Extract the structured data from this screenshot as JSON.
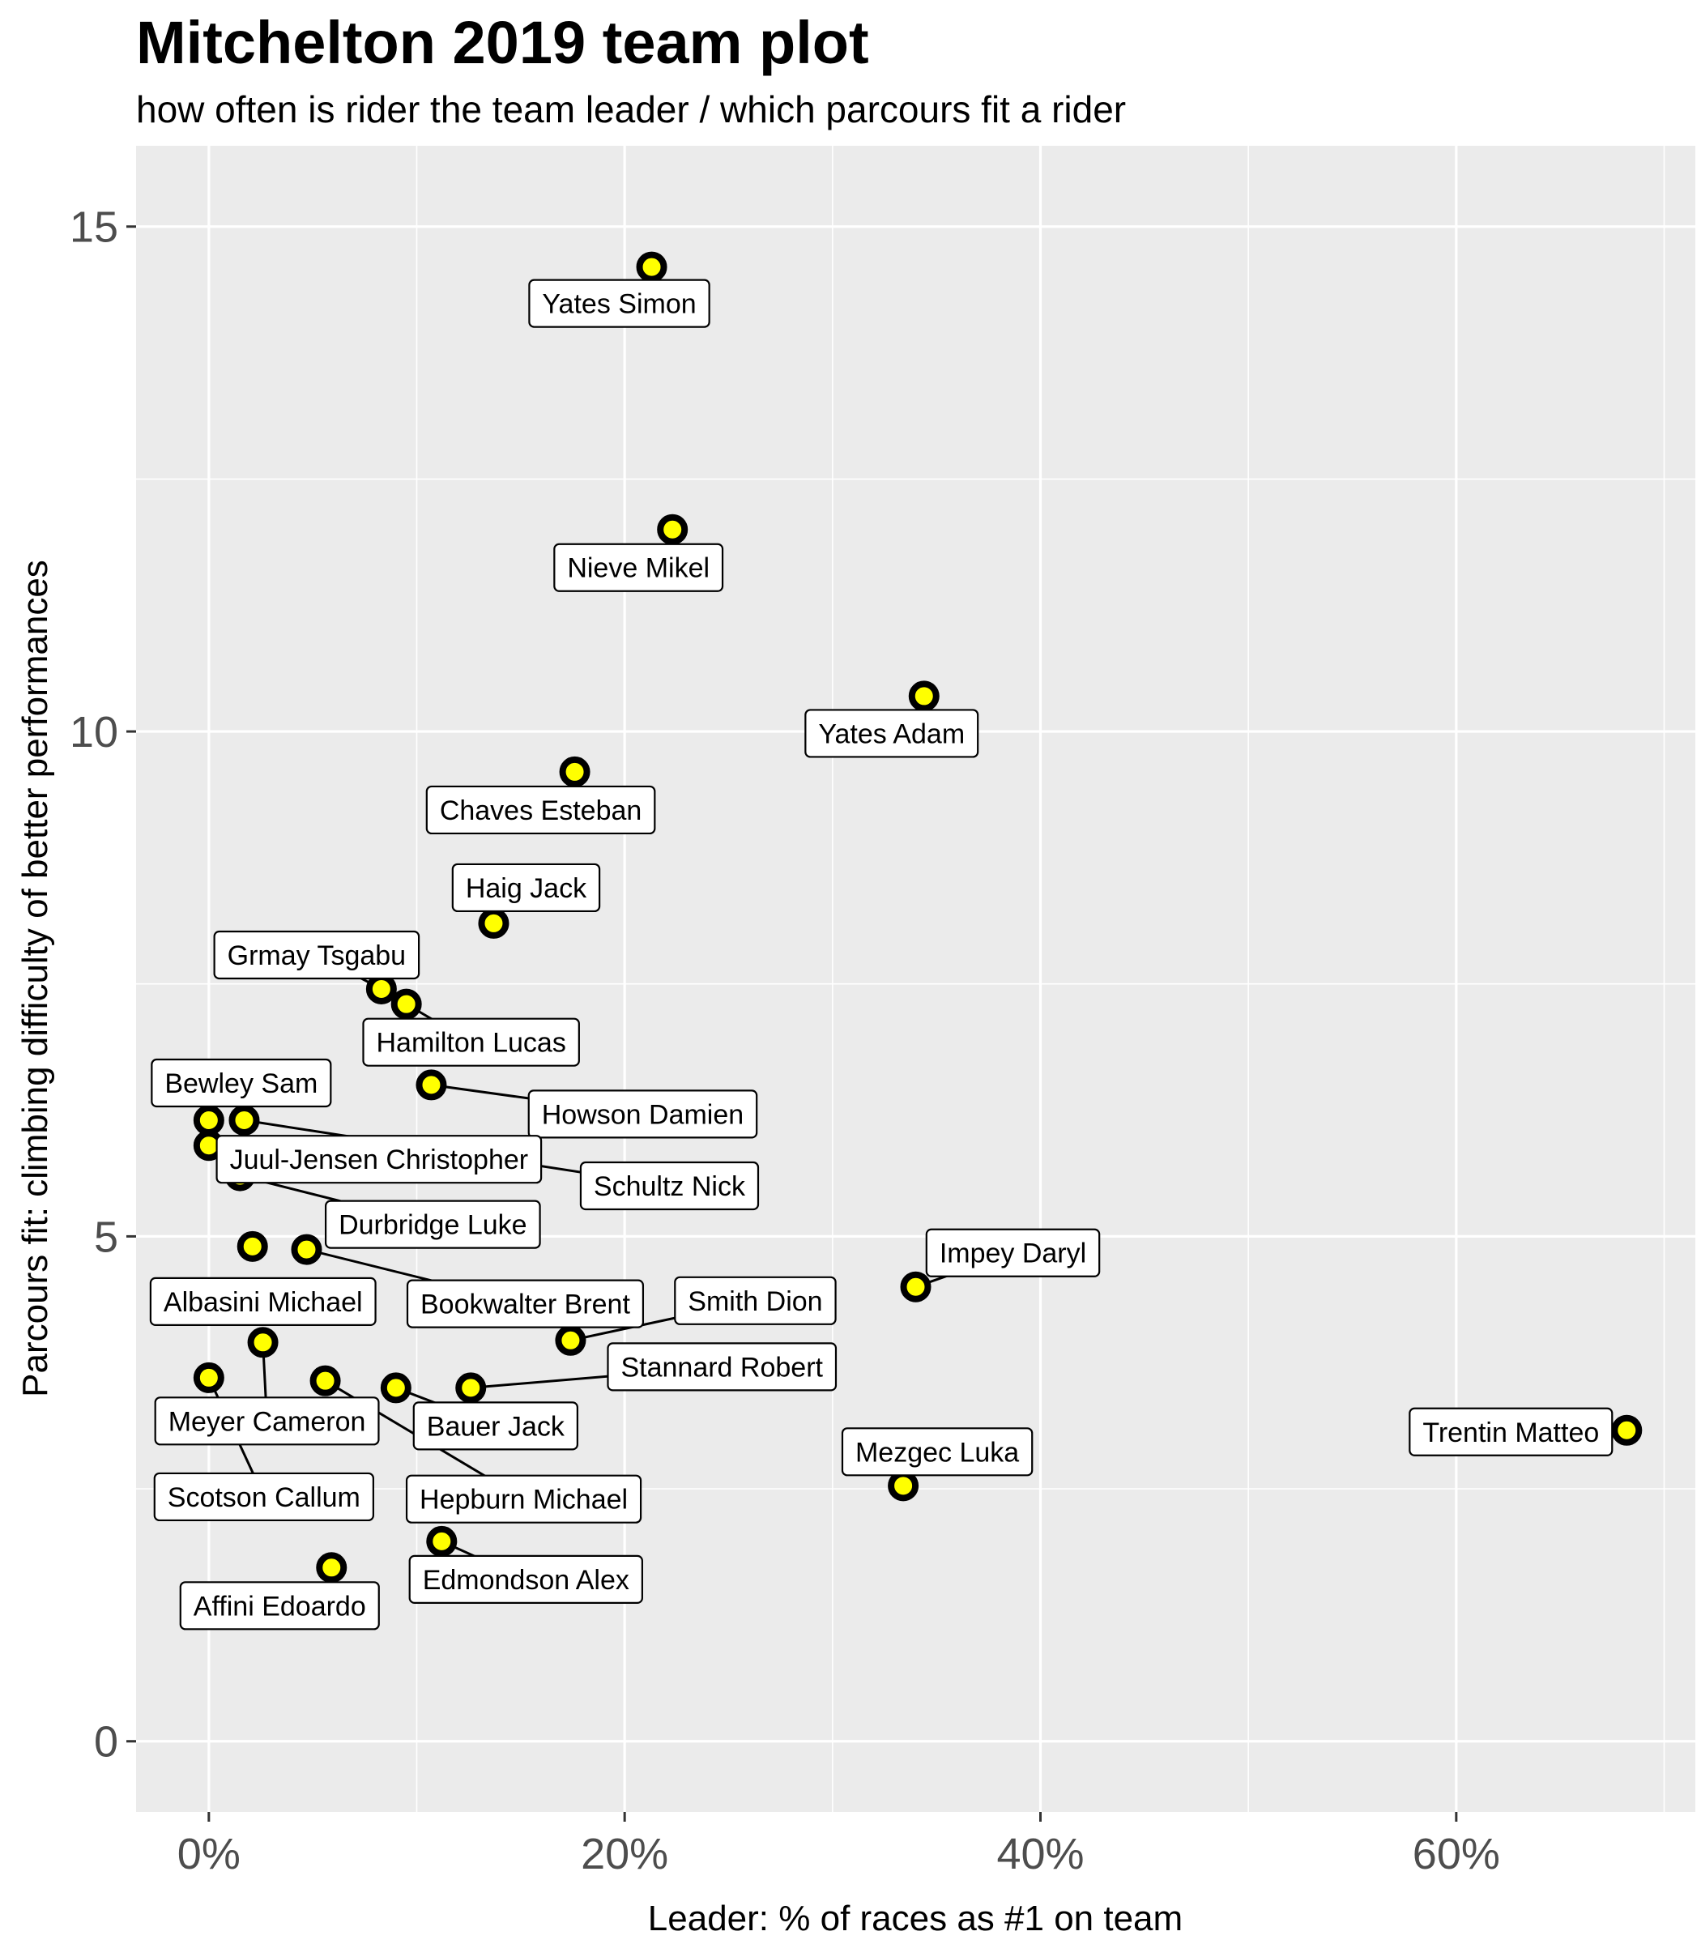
{
  "chart_data": {
    "type": "scatter",
    "title": "Mitchelton 2019 team plot",
    "subtitle": "how often is rider the team leader / which parcours fit a rider",
    "xlabel": "Leader: % of races as #1 on team",
    "ylabel": "Parcours fit: climbing difficulty of better performances",
    "xlim": [
      -3.5,
      71.5
    ],
    "ylim": [
      -0.7,
      15.8
    ],
    "x_ticks": [
      0,
      20,
      40,
      60
    ],
    "x_tick_labels": [
      "0%",
      "20%",
      "40%",
      "60%"
    ],
    "y_ticks": [
      0,
      5,
      10,
      15
    ],
    "y_tick_labels": [
      "0",
      "5",
      "10",
      "15"
    ],
    "grid": true,
    "legend": "none",
    "point_fill": "#ffff00",
    "point_stroke": "#000000",
    "panel_bg": "#ebebeb",
    "grid_color": "#ffffff",
    "points": [
      {
        "name": "Yates Simon",
        "x": 21.3,
        "y": 14.6
      },
      {
        "name": "Nieve Mikel",
        "x": 22.3,
        "y": 12.0
      },
      {
        "name": "Yates Adam",
        "x": 34.4,
        "y": 10.35
      },
      {
        "name": "Chaves Esteban",
        "x": 17.6,
        "y": 9.6
      },
      {
        "name": "Haig Jack",
        "x": 13.7,
        "y": 8.1
      },
      {
        "name": "Grmay Tsgabu",
        "x": 8.3,
        "y": 7.45
      },
      {
        "name": "Hamilton Lucas",
        "x": 9.5,
        "y": 7.3
      },
      {
        "name": "Howson Damien",
        "x": 10.7,
        "y": 6.5
      },
      {
        "name": "Bewley Sam",
        "x": 0.0,
        "y": 6.15
      },
      {
        "name": "Schultz Nick",
        "x": 1.7,
        "y": 6.15
      },
      {
        "name": "Juul-Jensen Christopher",
        "x": 0.0,
        "y": 5.9
      },
      {
        "name": "Durbridge Luke",
        "x": 1.5,
        "y": 5.6
      },
      {
        "name": "Albasini Michael",
        "x": 2.1,
        "y": 4.9
      },
      {
        "name": "Bookwalter Brent",
        "x": 4.7,
        "y": 4.87
      },
      {
        "name": "Impey Daryl",
        "x": 34.0,
        "y": 4.5
      },
      {
        "name": "Smith Dion",
        "x": 17.4,
        "y": 3.97
      },
      {
        "name": "Meyer Cameron",
        "x": 2.6,
        "y": 3.95
      },
      {
        "name": "Scotson Callum",
        "x": 0.0,
        "y": 3.6
      },
      {
        "name": "Hepburn Michael",
        "x": 5.6,
        "y": 3.57
      },
      {
        "name": "Bauer Jack",
        "x": 9.0,
        "y": 3.5
      },
      {
        "name": "Stannard Robert",
        "x": 12.6,
        "y": 3.5
      },
      {
        "name": "Trentin Matteo",
        "x": 68.2,
        "y": 3.08
      },
      {
        "name": "Mezgec Luka",
        "x": 33.4,
        "y": 2.53
      },
      {
        "name": "Edmondson Alex",
        "x": 11.2,
        "y": 1.98
      },
      {
        "name": "Affini Edoardo",
        "x": 5.9,
        "y": 1.72
      }
    ]
  }
}
